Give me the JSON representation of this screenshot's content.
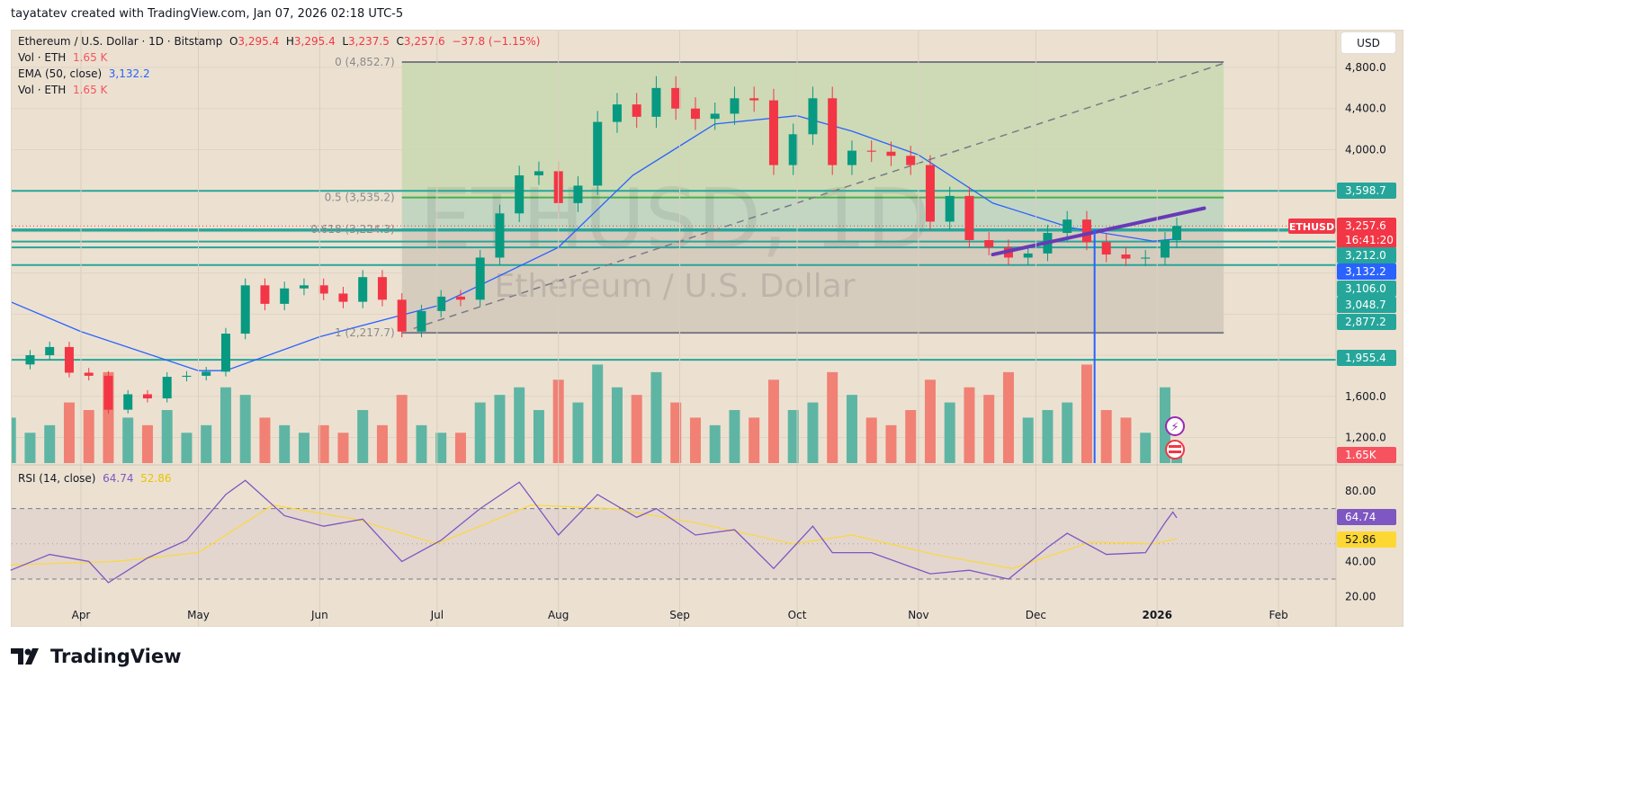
{
  "credit": "tayatatev created with TradingView.com, Jan 07, 2026 02:18 UTC-5",
  "legend": {
    "symbol": "Ethereum / U.S. Dollar · 1D · Bitstamp",
    "o_label": "O",
    "o": "3,295.4",
    "h_label": "H",
    "h": "3,295.4",
    "l_label": "L",
    "l": "3,237.5",
    "c_label": "C",
    "c": "3,257.6",
    "change": "−37.8 (−1.15%)",
    "vol1_label": "Vol · ETH",
    "vol1": "1.65 K",
    "ema_label": "EMA (50, close)",
    "ema": "3,132.2",
    "vol2_label": "Vol · ETH",
    "vol2": "1.65 K",
    "rsi_label": "RSI (14, close)",
    "rsi": "64.74",
    "rsi_ma": "52.86"
  },
  "currency_button": "USD",
  "watermark": {
    "line1": "ETHUSD, 1D",
    "line2": "Ethereum / U.S. Dollar"
  },
  "brand": "TradingView",
  "colors": {
    "up": "#089981",
    "down": "#f23645",
    "ema": "#2962ff",
    "rsi": "#7e57c2",
    "rsi_ma": "#fdd835",
    "level": "#26a69a",
    "trendline": "#673ab7",
    "background": "#ece1d1"
  },
  "chart_data": {
    "type": "candlestick",
    "symbol": "ETHUSD",
    "price_ticks": [
      "4,800.0",
      "4,400.0",
      "4,000.0",
      "1,600.0",
      "1,200.0"
    ],
    "price_tick_values": [
      4800,
      4400,
      4000,
      1600,
      1200
    ],
    "time_ticks": [
      {
        "label": "Apr",
        "date": "2025-04-01"
      },
      {
        "label": "May",
        "date": "2025-05-01"
      },
      {
        "label": "Jun",
        "date": "2025-06-01"
      },
      {
        "label": "Jul",
        "date": "2025-07-01"
      },
      {
        "label": "Aug",
        "date": "2025-08-01"
      },
      {
        "label": "Sep",
        "date": "2025-09-01"
      },
      {
        "label": "Oct",
        "date": "2025-10-01"
      },
      {
        "label": "Nov",
        "date": "2025-11-01"
      },
      {
        "label": "Dec",
        "date": "2025-12-01"
      },
      {
        "label": "2026",
        "date": "2026-01-01"
      },
      {
        "label": "Feb",
        "date": "2026-02-01"
      }
    ],
    "closes": [
      [
        "2025-03-14",
        1910
      ],
      [
        "2025-03-19",
        2000
      ],
      [
        "2025-03-24",
        2080
      ],
      [
        "2025-03-29",
        1830
      ],
      [
        "2025-04-03",
        1800
      ],
      [
        "2025-04-08",
        1470
      ],
      [
        "2025-04-13",
        1620
      ],
      [
        "2025-04-18",
        1580
      ],
      [
        "2025-04-23",
        1790
      ],
      [
        "2025-04-28",
        1800
      ],
      [
        "2025-05-03",
        1840
      ],
      [
        "2025-05-08",
        2210
      ],
      [
        "2025-05-13",
        2680
      ],
      [
        "2025-05-18",
        2500
      ],
      [
        "2025-05-23",
        2650
      ],
      [
        "2025-05-28",
        2680
      ],
      [
        "2025-06-02",
        2600
      ],
      [
        "2025-06-07",
        2520
      ],
      [
        "2025-06-12",
        2760
      ],
      [
        "2025-06-17",
        2540
      ],
      [
        "2025-06-22",
        2230
      ],
      [
        "2025-06-27",
        2430
      ],
      [
        "2025-07-02",
        2570
      ],
      [
        "2025-07-07",
        2540
      ],
      [
        "2025-07-12",
        2950
      ],
      [
        "2025-07-17",
        3380
      ],
      [
        "2025-07-22",
        3750
      ],
      [
        "2025-07-27",
        3790
      ],
      [
        "2025-08-01",
        3480
      ],
      [
        "2025-08-06",
        3650
      ],
      [
        "2025-08-11",
        4270
      ],
      [
        "2025-08-16",
        4440
      ],
      [
        "2025-08-21",
        4320
      ],
      [
        "2025-08-26",
        4600
      ],
      [
        "2025-08-31",
        4400
      ],
      [
        "2025-09-05",
        4300
      ],
      [
        "2025-09-10",
        4350
      ],
      [
        "2025-09-15",
        4500
      ],
      [
        "2025-09-20",
        4480
      ],
      [
        "2025-09-25",
        3850
      ],
      [
        "2025-09-30",
        4150
      ],
      [
        "2025-10-05",
        4500
      ],
      [
        "2025-10-10",
        3850
      ],
      [
        "2025-10-15",
        3990
      ],
      [
        "2025-10-20",
        3980
      ],
      [
        "2025-10-25",
        3940
      ],
      [
        "2025-10-30",
        3850
      ],
      [
        "2025-11-04",
        3300
      ],
      [
        "2025-11-09",
        3550
      ],
      [
        "2025-11-14",
        3120
      ],
      [
        "2025-11-19",
        3050
      ],
      [
        "2025-11-24",
        2950
      ],
      [
        "2025-11-29",
        2990
      ],
      [
        "2025-12-04",
        3190
      ],
      [
        "2025-12-09",
        3320
      ],
      [
        "2025-12-14",
        3100
      ],
      [
        "2025-12-19",
        2980
      ],
      [
        "2025-12-24",
        2940
      ],
      [
        "2025-12-29",
        2950
      ],
      [
        "2026-01-03",
        3120
      ],
      [
        "2026-01-06",
        3257.6
      ]
    ],
    "volume_k": [
      6,
      4,
      5,
      8,
      7,
      12,
      6,
      5,
      7,
      4,
      5,
      10,
      9,
      6,
      5,
      4,
      5,
      4,
      7,
      5,
      9,
      5,
      4,
      4,
      8,
      9,
      10,
      7,
      11,
      8,
      13,
      10,
      9,
      12,
      8,
      6,
      5,
      7,
      6,
      11,
      7,
      8,
      12,
      9,
      6,
      5,
      7,
      11,
      8,
      10,
      9,
      12,
      6,
      7,
      8,
      13,
      7,
      6,
      4,
      10,
      1.65
    ],
    "ema50": [
      [
        "2025-03-14",
        2520
      ],
      [
        "2025-04-01",
        2230
      ],
      [
        "2025-05-01",
        1850
      ],
      [
        "2025-05-08",
        1850
      ],
      [
        "2025-06-01",
        2180
      ],
      [
        "2025-07-01",
        2480
      ],
      [
        "2025-08-01",
        3050
      ],
      [
        "2025-08-20",
        3750
      ],
      [
        "2025-09-10",
        4250
      ],
      [
        "2025-10-01",
        4330
      ],
      [
        "2025-10-15",
        4180
      ],
      [
        "2025-11-01",
        3950
      ],
      [
        "2025-11-20",
        3480
      ],
      [
        "2025-12-10",
        3240
      ],
      [
        "2025-12-31",
        3110
      ],
      [
        "2026-01-06",
        3132.2
      ]
    ],
    "rsi": [
      [
        "2025-03-14",
        35
      ],
      [
        "2025-03-24",
        44
      ],
      [
        "2025-04-03",
        40
      ],
      [
        "2025-04-08",
        28
      ],
      [
        "2025-04-18",
        42
      ],
      [
        "2025-04-28",
        52
      ],
      [
        "2025-05-08",
        78
      ],
      [
        "2025-05-13",
        86
      ],
      [
        "2025-05-23",
        66
      ],
      [
        "2025-06-02",
        60
      ],
      [
        "2025-06-12",
        64
      ],
      [
        "2025-06-22",
        40
      ],
      [
        "2025-07-02",
        52
      ],
      [
        "2025-07-12",
        70
      ],
      [
        "2025-07-22",
        85
      ],
      [
        "2025-08-01",
        55
      ],
      [
        "2025-08-11",
        78
      ],
      [
        "2025-08-21",
        65
      ],
      [
        "2025-08-26",
        70
      ],
      [
        "2025-09-05",
        55
      ],
      [
        "2025-09-15",
        58
      ],
      [
        "2025-09-25",
        36
      ],
      [
        "2025-10-05",
        60
      ],
      [
        "2025-10-10",
        45
      ],
      [
        "2025-10-20",
        45
      ],
      [
        "2025-11-04",
        33
      ],
      [
        "2025-11-14",
        35
      ],
      [
        "2025-11-24",
        30
      ],
      [
        "2025-12-04",
        48
      ],
      [
        "2025-12-09",
        56
      ],
      [
        "2025-12-19",
        44
      ],
      [
        "2025-12-29",
        45
      ],
      [
        "2026-01-03",
        62
      ],
      [
        "2026-01-05",
        68
      ],
      [
        "2026-01-06",
        64.74
      ]
    ],
    "rsi_ma": [
      [
        "2025-03-14",
        38
      ],
      [
        "2025-04-10",
        40
      ],
      [
        "2025-05-01",
        45
      ],
      [
        "2025-05-20",
        72
      ],
      [
        "2025-06-10",
        64
      ],
      [
        "2025-07-01",
        50
      ],
      [
        "2025-07-25",
        72
      ],
      [
        "2025-08-15",
        70
      ],
      [
        "2025-09-05",
        62
      ],
      [
        "2025-09-30",
        50
      ],
      [
        "2025-10-15",
        55
      ],
      [
        "2025-11-05",
        44
      ],
      [
        "2025-11-25",
        36
      ],
      [
        "2025-12-15",
        51
      ],
      [
        "2025-12-31",
        50
      ],
      [
        "2026-01-06",
        52.86
      ]
    ],
    "rsi_ticks": [
      "80.00",
      "40.00",
      "20.00"
    ],
    "rsi_tick_values": [
      80,
      40,
      20
    ],
    "rsi_bands": [
      70,
      30
    ],
    "fib": {
      "start_date": "2025-06-22",
      "end_date": "2026-01-18",
      "levels": [
        {
          "label": "0 (4,852.7)",
          "value": 4852.7
        },
        {
          "label": "0.5 (3,535.2)",
          "value": 3535.2
        },
        {
          "label": "0.618 (3,224.3)",
          "value": 3224.3
        },
        {
          "label": "1 (2,217.7)",
          "value": 2217.7
        }
      ]
    },
    "trendline_dashed": [
      [
        "2025-06-25",
        2260
      ],
      [
        "2026-01-18",
        4840
      ]
    ],
    "trendline_support": [
      [
        "2025-11-20",
        2980
      ],
      [
        "2026-01-13",
        3430
      ]
    ],
    "horizontal_levels": [
      3598.7,
      3224.3,
      3212.0,
      3106.0,
      3048.7,
      2877.2,
      1955.4
    ],
    "vertical_line_date": "2025-12-16",
    "axis_labels": [
      {
        "text": "3,598.7",
        "kind": "level"
      },
      {
        "text": "ETHUSD",
        "kind": "symbol"
      },
      {
        "text": "3,257.6",
        "kind": "price"
      },
      {
        "text": "16:41:20",
        "kind": "countdown"
      },
      {
        "text": "3,212.0",
        "kind": "level"
      },
      {
        "text": "3,132.2",
        "kind": "ema"
      },
      {
        "text": "3,106.0",
        "kind": "level"
      },
      {
        "text": "3,048.7",
        "kind": "level"
      },
      {
        "text": "2,877.2",
        "kind": "level"
      },
      {
        "text": "1,955.4",
        "kind": "level"
      },
      {
        "text": "1.65K",
        "kind": "volume"
      },
      {
        "text": "64.74",
        "kind": "rsi"
      },
      {
        "text": "52.86",
        "kind": "rsi_ma"
      }
    ]
  }
}
